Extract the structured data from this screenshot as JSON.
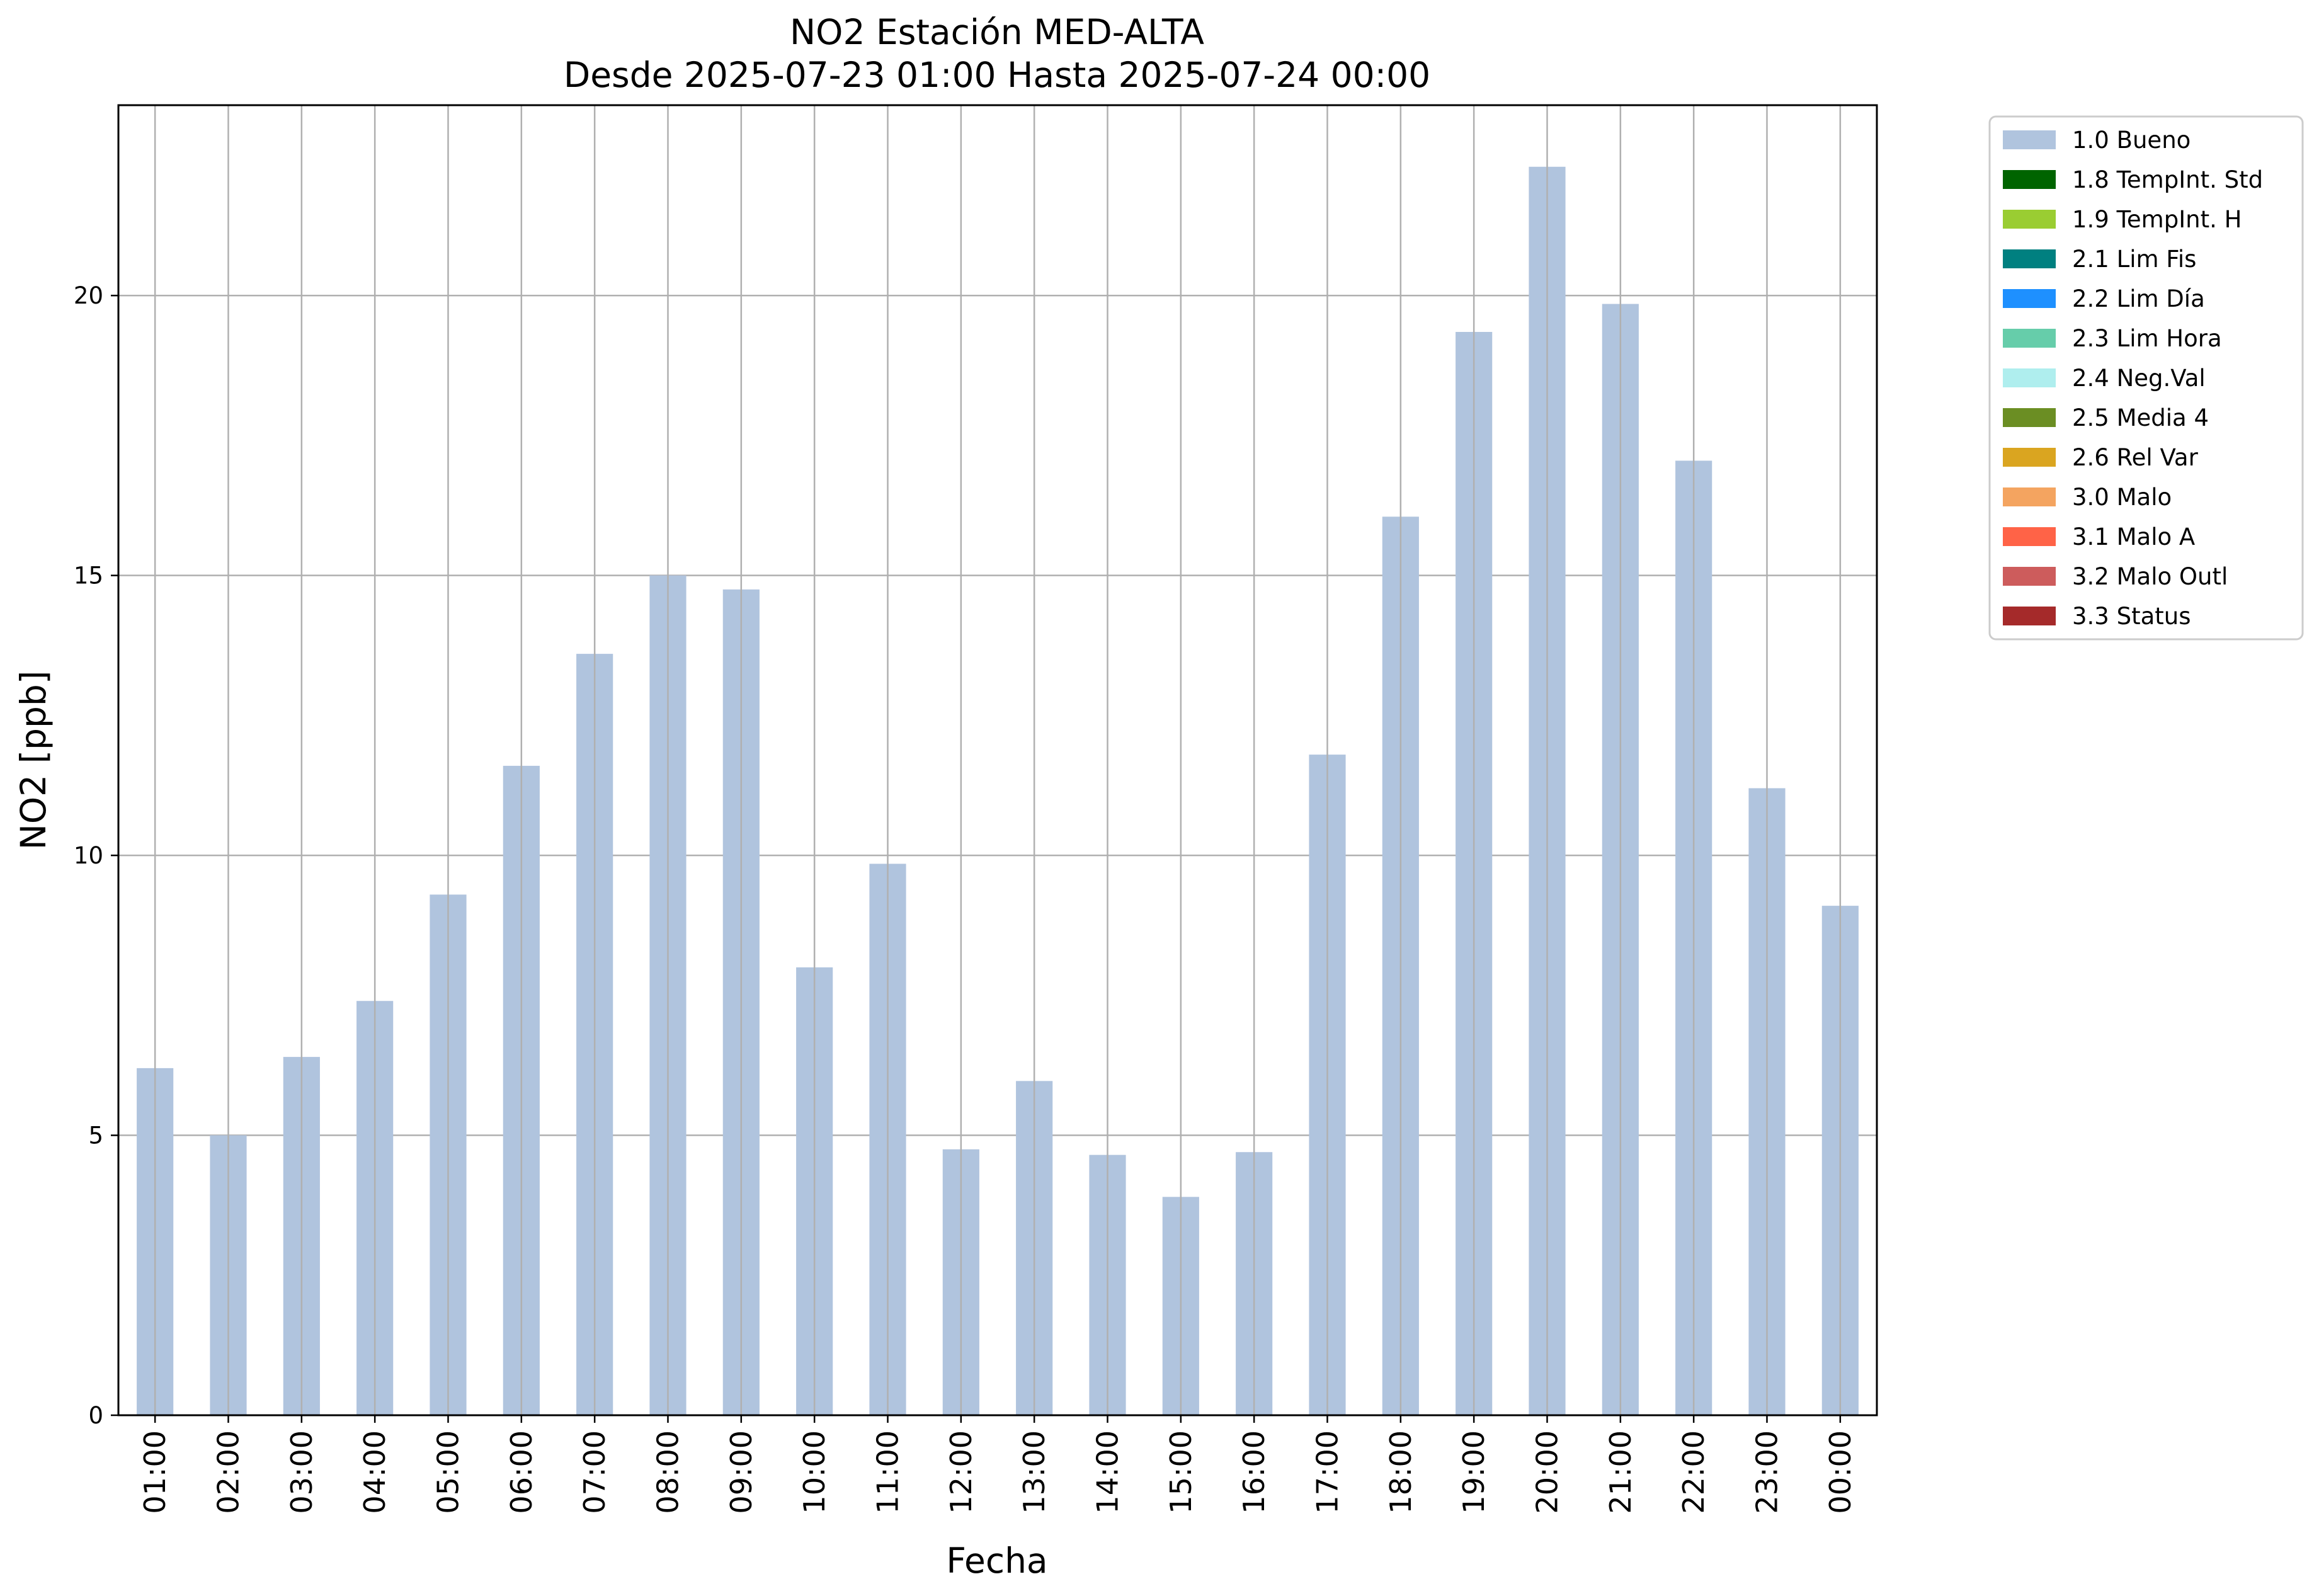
{
  "chart_data": {
    "type": "bar",
    "title_line1": "NO2 Estación MED-ALTA",
    "title_line2": "Desde 2025-07-23 01:00 Hasta 2025-07-24 00:00",
    "xlabel": "Fecha",
    "ylabel": "NO2 [ppb]",
    "ylim": [
      0,
      23.4
    ],
    "yticks": [
      0,
      5,
      10,
      15,
      20
    ],
    "grid": true,
    "legend_position": "outside-top-right",
    "categories": [
      "01:00",
      "02:00",
      "03:00",
      "04:00",
      "05:00",
      "06:00",
      "07:00",
      "08:00",
      "09:00",
      "10:00",
      "11:00",
      "12:00",
      "13:00",
      "14:00",
      "15:00",
      "16:00",
      "17:00",
      "18:00",
      "19:00",
      "20:00",
      "21:00",
      "22:00",
      "23:00",
      "00:00"
    ],
    "series": [
      {
        "name": "1.0 Bueno",
        "color": "#b0c4de",
        "values": [
          6.2,
          5.0,
          6.4,
          7.4,
          9.3,
          11.6,
          13.6,
          15.0,
          14.75,
          8.0,
          9.85,
          4.75,
          5.97,
          4.65,
          3.9,
          4.7,
          11.8,
          16.05,
          19.35,
          22.3,
          19.85,
          17.05,
          11.2,
          9.1
        ]
      }
    ],
    "legend": [
      {
        "label": "1.0 Bueno",
        "color": "#b0c4de"
      },
      {
        "label": "1.8 TempInt. Std",
        "color": "#006400"
      },
      {
        "label": "1.9 TempInt. H",
        "color": "#9acd32"
      },
      {
        "label": "2.1 Lim Fis",
        "color": "#008080"
      },
      {
        "label": "2.2 Lim Día",
        "color": "#1e90ff"
      },
      {
        "label": "2.3 Lim Hora",
        "color": "#66cdaa"
      },
      {
        "label": "2.4 Neg.Val",
        "color": "#afeeee"
      },
      {
        "label": "2.5 Media 4",
        "color": "#6b8e23"
      },
      {
        "label": "2.6 Rel Var",
        "color": "#daa520"
      },
      {
        "label": "3.0 Malo",
        "color": "#f4a460"
      },
      {
        "label": "3.1 Malo A",
        "color": "#ff6347"
      },
      {
        "label": "3.2 Malo Outl",
        "color": "#cd5c5c"
      },
      {
        "label": "3.3 Status",
        "color": "#a52a2a"
      }
    ]
  }
}
